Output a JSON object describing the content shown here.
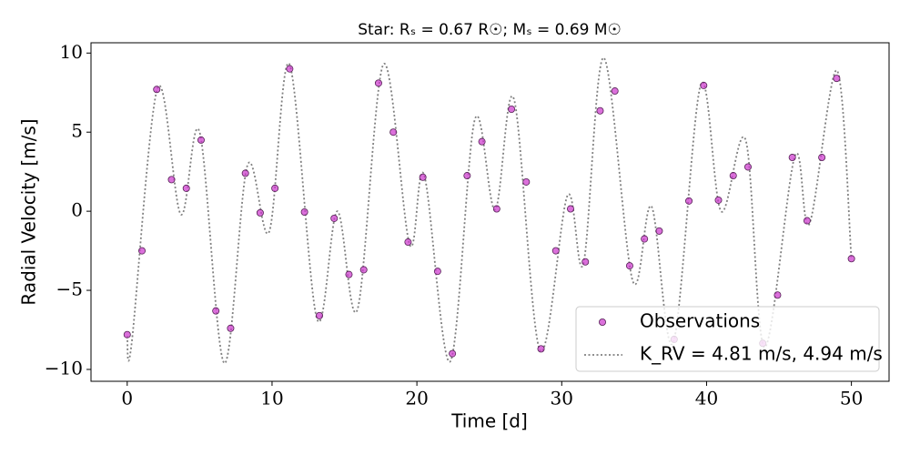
{
  "chart_data": {
    "type": "scatter",
    "title": "Star: Rₛ = 0.67 R☉; Mₛ = 0.69 M☉",
    "x_label": "Time [d]",
    "y_label": "Radial Velocity [m/s]",
    "xlim": [
      -2.5,
      52.6
    ],
    "ylim": [
      -10.75,
      10.65
    ],
    "xticks": [
      0,
      10,
      20,
      30,
      40,
      50
    ],
    "yticks": [
      {
        "value": -10,
        "label": "−10"
      },
      {
        "value": -5,
        "label": "−5"
      },
      0,
      5,
      10
    ],
    "legend": "lower right",
    "series": [
      {
        "name": "Observations",
        "type": "scatter",
        "color": "#cc33cc",
        "x": [
          0,
          1.02,
          2.04,
          3.06,
          4.08,
          5.1,
          6.12,
          7.14,
          8.16,
          9.18,
          10.2,
          11.22,
          12.24,
          13.27,
          14.29,
          15.31,
          16.33,
          17.35,
          18.37,
          19.39,
          20.41,
          21.43,
          22.45,
          23.47,
          24.49,
          25.51,
          26.53,
          27.55,
          28.57,
          29.59,
          30.61,
          31.63,
          32.65,
          33.67,
          34.69,
          35.71,
          36.73,
          37.76,
          38.78,
          39.8,
          40.82,
          41.84,
          42.86,
          43.88,
          44.9,
          45.92,
          46.94,
          47.96,
          48.98,
          50
        ],
        "values": [
          -7.8,
          -2.5,
          7.7,
          2.0,
          1.45,
          4.5,
          -6.3,
          -7.4,
          2.4,
          -0.1,
          1.45,
          9.0,
          -0.05,
          -6.6,
          -0.45,
          -4.0,
          -3.7,
          8.1,
          5.0,
          -1.95,
          2.15,
          -3.8,
          -9.0,
          2.25,
          4.4,
          0.15,
          6.45,
          1.85,
          -8.7,
          -2.5,
          0.15,
          -3.2,
          6.35,
          7.6,
          -3.45,
          -1.75,
          -1.25,
          -8.1,
          0.65,
          7.95,
          0.7,
          2.25,
          2.8,
          -8.35,
          -5.3,
          3.4,
          -0.6,
          3.4,
          8.4,
          -3.0
        ]
      },
      {
        "name": "K_RV = 4.81 m/s, 4.94 m/s",
        "type": "line",
        "color": "#808080",
        "x": [
          0,
          0.3,
          2.1,
          3.7,
          5.0,
          6.7,
          8.3,
          9.8,
          11.2,
          13.1,
          14.5,
          15.9,
          17.7,
          19.5,
          20.5,
          22.3,
          24.0,
          25.4,
          26.7,
          28.5,
          30.4,
          31.5,
          32.9,
          34.9,
          36.2,
          37.7,
          39.6,
          41.0,
          42.7,
          44.0,
          46.1,
          47.1,
          49.0,
          50.0
        ],
        "values": [
          -7.9,
          -8.4,
          7.8,
          -0.2,
          5.0,
          -9.6,
          2.9,
          -1.3,
          9.3,
          -6.8,
          0.0,
          -6.2,
          9.3,
          -2.1,
          2.3,
          -9.5,
          5.8,
          0.1,
          7.1,
          -8.8,
          1.0,
          -3.3,
          9.7,
          -4.4,
          0.3,
          -8.3,
          8.0,
          0.0,
          4.5,
          -8.6,
          3.5,
          -0.8,
          8.9,
          -3.0
        ]
      }
    ]
  }
}
